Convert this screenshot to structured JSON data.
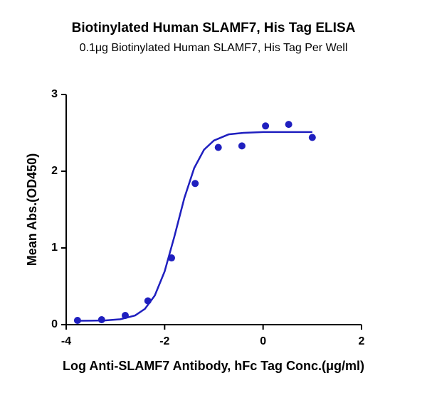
{
  "chart_data": {
    "type": "scatter",
    "title": "Biotinylated Human SLAMF7, His Tag ELISA",
    "subtitle": "0.1μg Biotinylated Human SLAMF7, His Tag Per Well",
    "x_label": "Log Anti-SLAMF7 Antibody, hFc Tag Conc.(μg/ml)",
    "y_label": "Mean Abs.(OD450)",
    "series": [
      {
        "color": "#1f1fbf",
        "style": "points",
        "x": [
          -3.77,
          -3.28,
          -2.8,
          -2.34,
          -1.86,
          -1.38,
          -0.91,
          -0.43,
          0.05,
          0.52,
          1.0
        ],
        "values": [
          0.055,
          0.065,
          0.12,
          0.31,
          0.87,
          1.84,
          2.31,
          2.33,
          2.59,
          2.61,
          2.44
        ]
      },
      {
        "color": "#1f1fbf",
        "style": "line",
        "x": [
          -3.77,
          -3.5,
          -3.2,
          -2.9,
          -2.6,
          -2.4,
          -2.2,
          -2.0,
          -1.8,
          -1.6,
          -1.4,
          -1.2,
          -1.0,
          -0.7,
          -0.4,
          0,
          0.5,
          1.0
        ],
        "values": [
          0.051,
          0.052,
          0.056,
          0.071,
          0.12,
          0.206,
          0.38,
          0.694,
          1.153,
          1.65,
          2.04,
          2.28,
          2.4,
          2.48,
          2.5,
          2.51,
          2.51,
          2.51
        ]
      }
    ],
    "xlim": [
      -4,
      2
    ],
    "xticks": [
      -4,
      -2,
      0,
      2
    ],
    "ylim": [
      0,
      3
    ],
    "yticks": [
      0,
      1,
      2,
      3
    ]
  }
}
